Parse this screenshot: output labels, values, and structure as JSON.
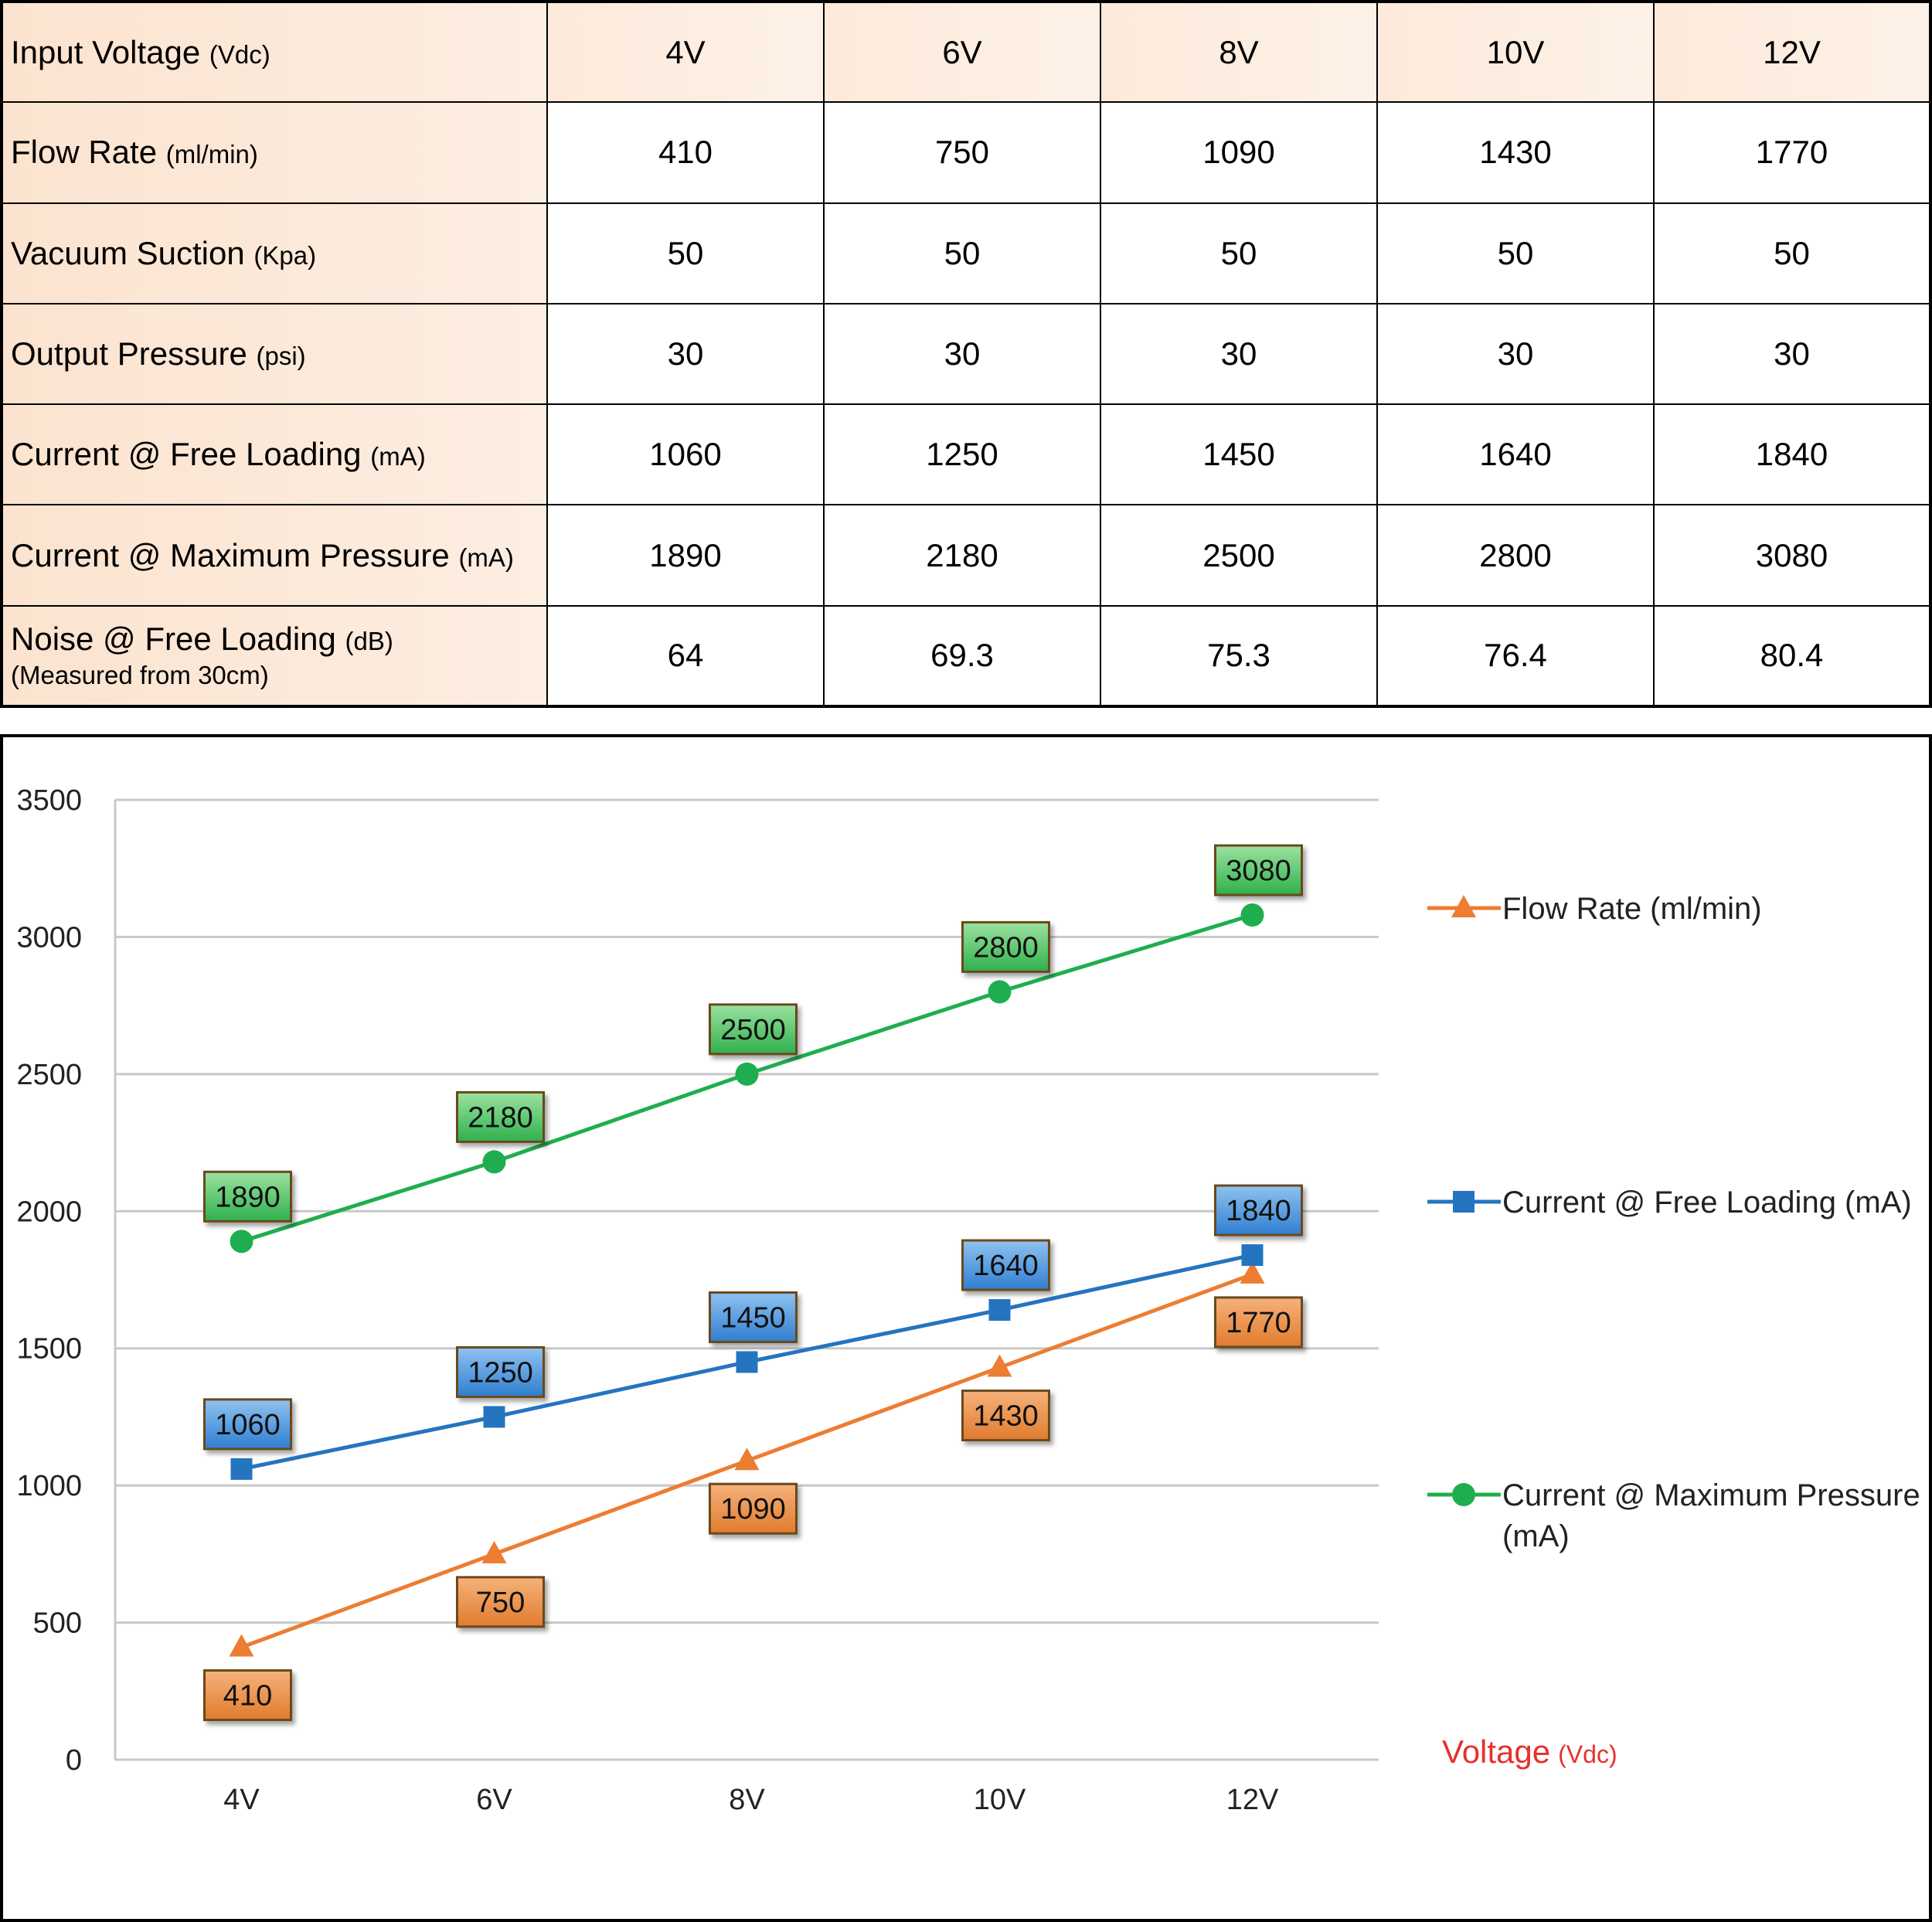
{
  "table": {
    "columns": [
      "4V",
      "6V",
      "8V",
      "10V",
      "12V"
    ],
    "rows": [
      {
        "label": "Input Voltage ",
        "unit": "(Vdc)",
        "note": "",
        "values": [
          "4V",
          "6V",
          "8V",
          "10V",
          "12V"
        ]
      },
      {
        "label": "Flow Rate ",
        "unit": "(ml/min)",
        "note": "",
        "values": [
          "410",
          "750",
          "1090",
          "1430",
          "1770"
        ]
      },
      {
        "label": "Vacuum Suction ",
        "unit": "(Kpa)",
        "note": "",
        "values": [
          "50",
          "50",
          "50",
          "50",
          "50"
        ]
      },
      {
        "label": "Output Pressure ",
        "unit": "(psi)",
        "note": "",
        "values": [
          "30",
          "30",
          "30",
          "30",
          "30"
        ]
      },
      {
        "label": "Current @ Free Loading ",
        "unit": "(mA)",
        "note": "",
        "values": [
          "1060",
          "1250",
          "1450",
          "1640",
          "1840"
        ]
      },
      {
        "label": "Current @ Maximum Pressure ",
        "unit": "(mA)",
        "note": "",
        "values": [
          "1890",
          "2180",
          "2500",
          "2800",
          "3080"
        ]
      },
      {
        "label": "Noise @ Free Loading ",
        "unit": "(dB)",
        "note": "(Measured from 30cm)",
        "values": [
          "64",
          "69.3",
          "75.3",
          "76.4",
          "80.4"
        ]
      }
    ]
  },
  "chart_data": {
    "type": "line",
    "categories": [
      "4V",
      "6V",
      "8V",
      "10V",
      "12V"
    ],
    "ylim": [
      0,
      3500
    ],
    "yticks": [
      0,
      500,
      1000,
      1500,
      2000,
      2500,
      3000,
      3500
    ],
    "grid": true,
    "legend_position": "right",
    "xlabel": "Voltage",
    "xlabel_unit": "(Vdc)",
    "series": [
      {
        "name": "Flow Rate (ml/min)",
        "values": [
          410,
          750,
          1090,
          1430,
          1770
        ],
        "color": "#ed7d31",
        "marker": "triangle",
        "label_fill": "#e07b2e"
      },
      {
        "name": "Current @ Free Loading (mA)",
        "values": [
          1060,
          1250,
          1450,
          1640,
          1840
        ],
        "color": "#2474c0",
        "marker": "square",
        "label_fill": "#2f7ed0"
      },
      {
        "name": "Current @ Maximum Pressure (mA)",
        "values": [
          1890,
          2180,
          2500,
          2800,
          3080
        ],
        "color": "#1fae4f",
        "marker": "circle",
        "label_fill": "#2fb04d"
      }
    ],
    "legend_lines": [
      [
        "Flow Rate (ml/min)"
      ],
      [
        "Current @ Free Loading (mA)"
      ],
      [
        "Current @ Maximum Pressure",
        "(mA)"
      ]
    ],
    "colors": {
      "grid": "#c8c8c8",
      "axis_title": "#e8302a"
    }
  }
}
